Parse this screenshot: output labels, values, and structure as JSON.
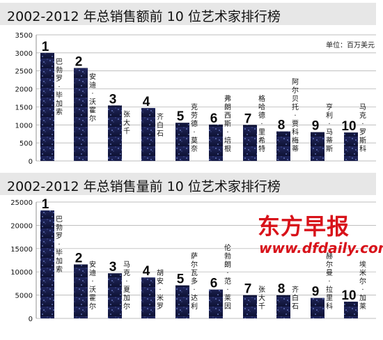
{
  "chart_data": [
    {
      "type": "bar",
      "title": "2002-2012 年总销售额前 10 位艺术家排行榜",
      "unit": "单位：百万美元",
      "ylim": [
        0,
        3500
      ],
      "yticks": [
        0,
        500,
        1000,
        1500,
        2000,
        2500,
        3000,
        3500
      ],
      "grid": true,
      "ranks": [
        "1",
        "2",
        "3",
        "4",
        "5",
        "6",
        "7",
        "8",
        "9",
        "10"
      ],
      "categories": [
        "巴勃罗·毕加索",
        "安迪·沃霍尔",
        "张大千",
        "齐白石",
        "克劳德·莫奈",
        "弗朗西斯·培根",
        "格哈德·里希特",
        "阿尔贝托·贾科梅蒂",
        "亨利·马蒂斯",
        "马克·罗斯科"
      ],
      "values": [
        3000,
        2580,
        1540,
        1470,
        1060,
        1010,
        1000,
        820,
        800,
        790
      ]
    },
    {
      "type": "bar",
      "title": "2002-2012 年总销售量前 10 位艺术家排行榜",
      "ylim": [
        0,
        25000
      ],
      "yticks": [
        0,
        5000,
        10000,
        15000,
        20000,
        25000
      ],
      "grid": true,
      "ranks": [
        "1",
        "2",
        "3",
        "4",
        "5",
        "6",
        "7",
        "8",
        "9",
        "10"
      ],
      "categories": [
        "巴勃罗·毕加索",
        "安迪·沃霍尔",
        "马克·夏加尔",
        "胡安·米罗",
        "萨尔瓦多·达利",
        "伦勃朗·范·莱因",
        "张大千",
        "齐白石",
        "赫尔曼·拉里科",
        "埃米尔·加莱"
      ],
      "values": [
        23200,
        11600,
        9700,
        8800,
        7100,
        6200,
        5000,
        5000,
        4400,
        3600
      ]
    }
  ],
  "logo": {
    "main": "东方早报",
    "url": "www.dfdaily.com"
  }
}
